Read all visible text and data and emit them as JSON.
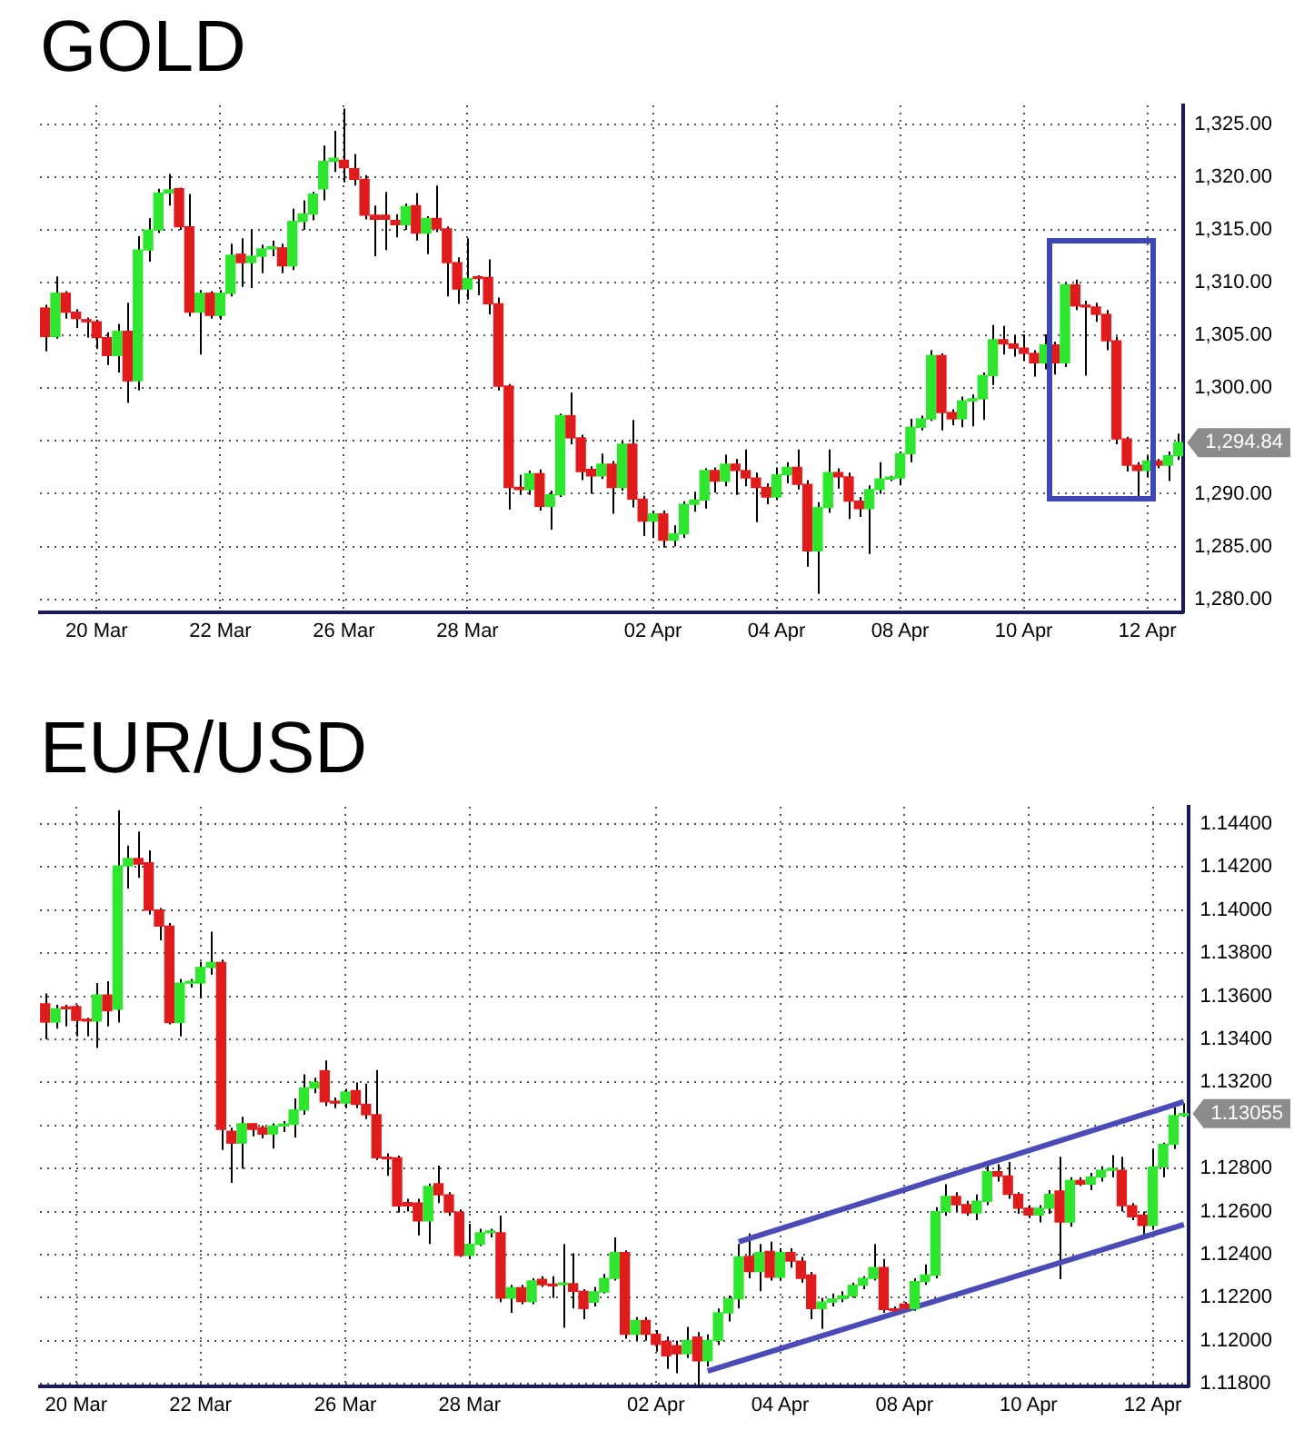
{
  "chart_data": [
    {
      "type": "candlestick",
      "title": "GOLD",
      "categories": [
        null,
        null,
        null,
        null,
        null,
        "20 Mar",
        null,
        null,
        null,
        null,
        null,
        null,
        null,
        null,
        null,
        null,
        null,
        "22 Mar",
        null,
        null,
        null,
        null,
        null,
        null,
        null,
        null,
        null,
        null,
        null,
        "26 Mar",
        null,
        null,
        null,
        null,
        null,
        null,
        null,
        null,
        null,
        null,
        null,
        "28 Mar",
        null,
        null,
        null,
        null,
        null,
        null,
        null,
        null,
        null,
        null,
        null,
        null,
        null,
        null,
        null,
        null,
        null,
        "02 Apr",
        null,
        null,
        null,
        null,
        null,
        null,
        null,
        null,
        null,
        null,
        null,
        "04 Apr",
        null,
        null,
        null,
        null,
        null,
        null,
        null,
        null,
        null,
        null,
        null,
        "08 Apr",
        null,
        null,
        null,
        null,
        null,
        null,
        null,
        null,
        null,
        null,
        null,
        "10 Apr",
        null,
        null,
        null,
        null,
        null,
        null,
        null,
        null,
        null,
        null,
        null,
        "12 Apr",
        null,
        null,
        null
      ],
      "ohlc": [
        [
          1307.6,
          1307.9,
          1303.5,
          1304.9
        ],
        [
          1304.9,
          1310.6,
          1304.7,
          1309.0
        ],
        [
          1309.0,
          1309.2,
          1306.6,
          1307.2
        ],
        [
          1307.2,
          1307.5,
          1305.7,
          1306.6
        ],
        [
          1306.5,
          1306.7,
          1304.8,
          1306.3
        ],
        [
          1306.3,
          1306.5,
          1303.7,
          1304.8
        ],
        [
          1304.8,
          1305.3,
          1302.2,
          1303.1
        ],
        [
          1303.1,
          1306.1,
          1301.5,
          1305.4
        ],
        [
          1305.4,
          1308.1,
          1298.6,
          1300.7
        ],
        [
          1300.7,
          1314.4,
          1299.8,
          1313.1
        ],
        [
          1313.1,
          1316.1,
          1312.0,
          1315.0
        ],
        [
          1315.0,
          1318.9,
          1314.7,
          1318.5
        ],
        [
          1318.5,
          1320.3,
          1317.3,
          1318.8
        ],
        [
          1318.9,
          1319.0,
          1315.0,
          1315.3
        ],
        [
          1315.3,
          1318.4,
          1306.8,
          1307.2
        ],
        [
          1307.2,
          1309.3,
          1303.2,
          1309.0
        ],
        [
          1309.0,
          1309.2,
          1306.6,
          1306.9
        ],
        [
          1306.9,
          1309.3,
          1306.5,
          1309.0
        ],
        [
          1309.0,
          1313.7,
          1308.7,
          1312.6
        ],
        [
          1312.7,
          1314.2,
          1309.6,
          1311.9
        ],
        [
          1311.9,
          1315.1,
          1309.5,
          1312.5
        ],
        [
          1312.5,
          1313.6,
          1310.9,
          1313.2
        ],
        [
          1313.2,
          1314.0,
          1312.5,
          1313.4
        ],
        [
          1313.3,
          1313.7,
          1310.9,
          1311.6
        ],
        [
          1311.6,
          1317.0,
          1311.2,
          1315.8
        ],
        [
          1315.8,
          1317.8,
          1315.0,
          1316.5
        ],
        [
          1316.5,
          1318.6,
          1315.9,
          1318.4
        ],
        [
          1318.9,
          1323.0,
          1317.8,
          1321.5
        ],
        [
          1321.5,
          1324.4,
          1320.5,
          1321.8
        ],
        [
          1321.6,
          1326.5,
          1319.5,
          1320.9
        ],
        [
          1320.8,
          1322.2,
          1319.2,
          1319.8
        ],
        [
          1319.8,
          1320.2,
          1316.0,
          1316.4
        ],
        [
          1316.4,
          1317.3,
          1312.5,
          1316.0
        ],
        [
          1316.4,
          1318.6,
          1313.1,
          1316.0
        ],
        [
          1315.9,
          1316.5,
          1314.3,
          1315.5
        ],
        [
          1315.5,
          1317.5,
          1315.0,
          1317.2
        ],
        [
          1317.3,
          1318.5,
          1314.0,
          1314.7
        ],
        [
          1314.7,
          1316.3,
          1312.7,
          1316.1
        ],
        [
          1316.1,
          1319.2,
          1314.8,
          1315.1
        ],
        [
          1315.1,
          1315.3,
          1308.7,
          1311.9
        ],
        [
          1311.9,
          1312.4,
          1308.0,
          1309.4
        ],
        [
          1309.4,
          1314.2,
          1308.4,
          1310.4
        ],
        [
          1310.5,
          1310.7,
          1308.8,
          1310.4
        ],
        [
          1310.5,
          1312.2,
          1307.0,
          1308.0
        ],
        [
          1308.0,
          1308.6,
          1299.8,
          1300.2
        ],
        [
          1300.2,
          1300.4,
          1288.5,
          1290.6
        ],
        [
          1290.6,
          1291.8,
          1289.9,
          1290.4
        ],
        [
          1290.4,
          1292.2,
          1289.9,
          1291.9
        ],
        [
          1291.9,
          1292.3,
          1288.4,
          1288.8
        ],
        [
          1288.8,
          1290.3,
          1286.6,
          1289.9
        ],
        [
          1289.9,
          1297.6,
          1289.7,
          1297.4
        ],
        [
          1297.4,
          1299.6,
          1294.7,
          1295.3
        ],
        [
          1295.3,
          1295.6,
          1291.3,
          1292.1
        ],
        [
          1292.3,
          1292.6,
          1290.0,
          1291.7
        ],
        [
          1291.7,
          1293.8,
          1291.4,
          1292.8
        ],
        [
          1292.8,
          1293.1,
          1288.1,
          1290.6
        ],
        [
          1290.6,
          1295.0,
          1290.3,
          1294.7
        ],
        [
          1294.7,
          1297.0,
          1288.7,
          1289.5
        ],
        [
          1289.5,
          1289.8,
          1286.0,
          1287.4
        ],
        [
          1287.4,
          1288.4,
          1285.8,
          1288.1
        ],
        [
          1288.1,
          1288.4,
          1284.9,
          1285.6
        ],
        [
          1285.6,
          1287.0,
          1285.0,
          1286.2
        ],
        [
          1286.2,
          1289.3,
          1285.8,
          1289.0
        ],
        [
          1289.0,
          1290.2,
          1288.3,
          1289.4
        ],
        [
          1289.4,
          1292.4,
          1288.6,
          1292.2
        ],
        [
          1292.2,
          1292.5,
          1290.1,
          1291.2
        ],
        [
          1291.2,
          1293.7,
          1290.7,
          1292.8
        ],
        [
          1292.8,
          1293.3,
          1289.9,
          1292.2
        ],
        [
          1292.2,
          1294.2,
          1290.7,
          1291.5
        ],
        [
          1291.5,
          1292.0,
          1287.3,
          1290.6
        ],
        [
          1290.6,
          1291.0,
          1289.0,
          1289.7
        ],
        [
          1289.7,
          1292.5,
          1289.4,
          1291.8
        ],
        [
          1291.8,
          1293.0,
          1291.0,
          1292.5
        ],
        [
          1292.5,
          1294.2,
          1290.4,
          1290.9
        ],
        [
          1290.9,
          1291.3,
          1283.1,
          1284.6
        ],
        [
          1284.6,
          1289.2,
          1280.5,
          1288.7
        ],
        [
          1288.7,
          1294.2,
          1288.2,
          1292.0
        ],
        [
          1292.0,
          1292.4,
          1290.5,
          1291.6
        ],
        [
          1291.6,
          1292.0,
          1287.6,
          1289.3
        ],
        [
          1289.3,
          1289.7,
          1287.8,
          1288.6
        ],
        [
          1288.6,
          1290.8,
          1284.3,
          1290.4
        ],
        [
          1290.4,
          1293.0,
          1290.0,
          1291.4
        ],
        [
          1291.4,
          1291.7,
          1291.2,
          1291.5
        ],
        [
          1291.5,
          1294.0,
          1290.8,
          1293.8
        ],
        [
          1293.8,
          1297.1,
          1293.0,
          1296.3
        ],
        [
          1296.3,
          1297.4,
          1296.0,
          1297.1
        ],
        [
          1297.1,
          1303.6,
          1296.9,
          1303.1
        ],
        [
          1303.1,
          1303.3,
          1296.0,
          1297.7
        ],
        [
          1297.7,
          1298.0,
          1296.5,
          1297.1
        ],
        [
          1297.1,
          1299.2,
          1296.3,
          1298.8
        ],
        [
          1298.8,
          1299.4,
          1296.4,
          1299.0
        ],
        [
          1299.0,
          1301.5,
          1297.0,
          1301.2
        ],
        [
          1301.2,
          1306.0,
          1300.3,
          1304.6
        ],
        [
          1304.6,
          1305.9,
          1303.2,
          1304.2
        ],
        [
          1304.2,
          1305.0,
          1303.0,
          1303.8
        ],
        [
          1303.8,
          1305.1,
          1302.6,
          1303.3
        ],
        [
          1303.3,
          1303.6,
          1301.1,
          1302.4
        ],
        [
          1302.4,
          1305.1,
          1301.8,
          1304.1
        ],
        [
          1304.1,
          1304.4,
          1301.3,
          1302.4
        ],
        [
          1302.4,
          1310.0,
          1302.0,
          1309.8
        ],
        [
          1309.8,
          1310.3,
          1307.4,
          1307.8
        ],
        [
          1307.8,
          1308.3,
          1301.2,
          1307.7
        ],
        [
          1307.7,
          1308.1,
          1306.3,
          1307.0
        ],
        [
          1307.0,
          1307.4,
          1303.6,
          1304.5
        ],
        [
          1304.5,
          1304.9,
          1294.7,
          1295.2
        ],
        [
          1295.2,
          1295.4,
          1292.1,
          1292.7
        ],
        [
          1292.7,
          1293.0,
          1289.7,
          1292.2
        ],
        [
          1292.2,
          1293.6,
          1291.6,
          1293.1
        ],
        [
          1293.1,
          1293.3,
          1292.4,
          1292.7
        ],
        [
          1292.7,
          1294.0,
          1291.2,
          1293.6
        ],
        [
          1293.6,
          1295.7,
          1293.2,
          1294.84
        ]
      ],
      "colors": [
        "#e01b1b",
        "#2ee62e",
        "#e01b1b",
        "#e01b1b",
        "#e01b1b",
        "#e01b1b",
        "#e01b1b",
        "#2ee62e",
        "#e01b1b",
        "#2ee62e",
        "#2ee62e",
        "#2ee62e",
        "#2ee62e",
        "#e01b1b",
        "#e01b1b",
        "#2ee62e",
        "#e01b1b",
        "#2ee62e",
        "#2ee62e",
        "#e01b1b",
        "#2ee62e",
        "#2ee62e",
        "#2ee62e",
        "#e01b1b",
        "#2ee62e",
        "#2ee62e",
        "#2ee62e",
        "#2ee62e",
        "#2ee62e",
        "#e01b1b",
        "#e01b1b",
        "#e01b1b",
        "#e01b1b",
        "#e01b1b",
        "#e01b1b",
        "#2ee62e",
        "#e01b1b",
        "#2ee62e",
        "#e01b1b",
        "#e01b1b",
        "#e01b1b",
        "#2ee62e",
        "#e01b1b",
        "#e01b1b",
        "#e01b1b",
        "#e01b1b",
        "#e01b1b",
        "#2ee62e",
        "#e01b1b",
        "#2ee62e",
        "#2ee62e",
        "#e01b1b",
        "#e01b1b",
        "#e01b1b",
        "#2ee62e",
        "#e01b1b",
        "#2ee62e",
        "#e01b1b",
        "#e01b1b",
        "#2ee62e",
        "#e01b1b",
        "#2ee62e",
        "#2ee62e",
        "#2ee62e",
        "#2ee62e",
        "#e01b1b",
        "#2ee62e",
        "#e01b1b",
        "#e01b1b",
        "#e01b1b",
        "#e01b1b",
        "#2ee62e",
        "#2ee62e",
        "#e01b1b",
        "#e01b1b",
        "#2ee62e",
        "#2ee62e",
        "#e01b1b",
        "#e01b1b",
        "#e01b1b",
        "#2ee62e",
        "#2ee62e",
        "#2ee62e",
        "#2ee62e",
        "#2ee62e",
        "#2ee62e",
        "#2ee62e",
        "#e01b1b",
        "#e01b1b",
        "#2ee62e",
        "#2ee62e",
        "#2ee62e",
        "#2ee62e",
        "#e01b1b",
        "#e01b1b",
        "#e01b1b",
        "#e01b1b",
        "#2ee62e",
        "#e01b1b",
        "#2ee62e",
        "#e01b1b",
        "#e01b1b",
        "#e01b1b",
        "#e01b1b",
        "#e01b1b",
        "#e01b1b",
        "#e01b1b",
        "#2ee62e",
        "#e01b1b",
        "#2ee62e",
        "#2ee62e"
      ],
      "ylim": [
        1278.8,
        1326.8
      ],
      "yticks": [
        {
          "value": 1280,
          "label": "1,280.00"
        },
        {
          "value": 1285,
          "label": "1,285.00"
        },
        {
          "value": 1290,
          "label": "1,290.00"
        },
        {
          "value": 1295,
          "label": null
        },
        {
          "value": 1300,
          "label": "1,300.00"
        },
        {
          "value": 1305,
          "label": "1,305.00"
        },
        {
          "value": 1310,
          "label": "1,310.00"
        },
        {
          "value": 1315,
          "label": "1,315.00"
        },
        {
          "value": 1320,
          "label": "1,320.00"
        },
        {
          "value": 1325,
          "label": "1,325.00"
        }
      ],
      "grid": true,
      "annotations": [
        "1,294.84"
      ]
    },
    {
      "type": "candlestick",
      "title": "EUR/USD",
      "categories": [
        null,
        null,
        null,
        "20 Mar",
        null,
        null,
        null,
        null,
        null,
        null,
        null,
        null,
        null,
        null,
        null,
        "22 Mar",
        null,
        null,
        null,
        null,
        null,
        null,
        null,
        null,
        null,
        null,
        null,
        null,
        null,
        "26 Mar",
        null,
        null,
        null,
        null,
        null,
        null,
        null,
        null,
        null,
        null,
        null,
        "28 Mar",
        null,
        null,
        null,
        null,
        null,
        null,
        null,
        null,
        null,
        null,
        null,
        null,
        null,
        null,
        null,
        null,
        null,
        "02 Apr",
        null,
        null,
        null,
        null,
        null,
        null,
        null,
        null,
        null,
        null,
        null,
        "04 Apr",
        null,
        null,
        null,
        null,
        null,
        null,
        null,
        null,
        null,
        null,
        null,
        "08 Apr",
        null,
        null,
        null,
        null,
        null,
        null,
        null,
        null,
        null,
        null,
        null,
        "10 Apr",
        null,
        null,
        null,
        null,
        null,
        null,
        null,
        null,
        null,
        null,
        null,
        "12 Apr",
        null,
        null,
        null
      ],
      "ohlc": [
        [
          1.13565,
          1.13613,
          1.134,
          1.1348
        ],
        [
          1.1348,
          1.1356,
          1.1345,
          1.13542
        ],
        [
          1.1355,
          1.1356,
          1.1346,
          1.13542
        ],
        [
          1.13552,
          1.1356,
          1.13414,
          1.13488
        ],
        [
          1.13488,
          1.135,
          1.13414,
          1.13485
        ],
        [
          1.13485,
          1.13661,
          1.1336,
          1.13606
        ],
        [
          1.13606,
          1.1367,
          1.1346,
          1.13533
        ],
        [
          1.1354,
          1.14464,
          1.13478,
          1.14205
        ],
        [
          1.14205,
          1.143,
          1.141,
          1.1424
        ],
        [
          1.1424,
          1.14365,
          1.1415,
          1.14214
        ],
        [
          1.1422,
          1.14278,
          1.1398,
          1.14
        ],
        [
          1.14,
          1.1401,
          1.1386,
          1.13926
        ],
        [
          1.13926,
          1.1394,
          1.1347,
          1.13478
        ],
        [
          1.13478,
          1.1368,
          1.13414,
          1.13661
        ],
        [
          1.13661,
          1.1368,
          1.1364,
          1.13665
        ],
        [
          1.13661,
          1.1376,
          1.1359,
          1.13734
        ],
        [
          1.13734,
          1.139,
          1.137,
          1.13757
        ],
        [
          1.13757,
          1.1377,
          1.12886,
          1.12982
        ],
        [
          1.12973,
          1.1299,
          1.12733,
          1.12918
        ],
        [
          1.12918,
          1.1304,
          1.128,
          1.13008
        ],
        [
          1.13008,
          1.1301,
          1.1295,
          1.12982
        ],
        [
          1.1299,
          1.13,
          1.1294,
          1.1296
        ],
        [
          1.1296,
          1.1301,
          1.12893,
          1.12998
        ],
        [
          1.12998,
          1.1302,
          1.1297,
          1.13005
        ],
        [
          1.13005,
          1.13126,
          1.12944,
          1.13072
        ],
        [
          1.13072,
          1.13238,
          1.1305,
          1.13174
        ],
        [
          1.13174,
          1.13222,
          1.1315,
          1.132
        ],
        [
          1.13254,
          1.13302,
          1.1309,
          1.1311
        ],
        [
          1.1311,
          1.1313,
          1.1308,
          1.13104
        ],
        [
          1.13104,
          1.1317,
          1.1308,
          1.13155
        ],
        [
          1.13162,
          1.132,
          1.1308,
          1.13098
        ],
        [
          1.13098,
          1.13194,
          1.1303,
          1.1305
        ],
        [
          1.1305,
          1.13258,
          1.1284,
          1.1285
        ],
        [
          1.1285,
          1.1287,
          1.12766,
          1.12845
        ],
        [
          1.1285,
          1.1286,
          1.12595,
          1.12626
        ],
        [
          1.12642,
          1.1266,
          1.126,
          1.12626
        ],
        [
          1.1264,
          1.1266,
          1.1249,
          1.12557
        ],
        [
          1.12557,
          1.1273,
          1.1245,
          1.12717
        ],
        [
          1.1273,
          1.12813,
          1.1264,
          1.12678
        ],
        [
          1.12678,
          1.1269,
          1.1258,
          1.12598
        ],
        [
          1.12598,
          1.1261,
          1.1239,
          1.12397
        ],
        [
          1.12397,
          1.12544,
          1.1238,
          1.12448
        ],
        [
          1.12448,
          1.1252,
          1.1244,
          1.12502
        ],
        [
          1.12502,
          1.1252,
          1.1248,
          1.12505
        ],
        [
          1.12502,
          1.12582,
          1.1218,
          1.12198
        ],
        [
          1.12198,
          1.1226,
          1.1213,
          1.12246
        ],
        [
          1.12246,
          1.1226,
          1.1217,
          1.12182
        ],
        [
          1.12182,
          1.1229,
          1.1217,
          1.12278
        ],
        [
          1.12285,
          1.123,
          1.1225,
          1.1226
        ],
        [
          1.1226,
          1.123,
          1.122,
          1.12255
        ],
        [
          1.1226,
          1.1245,
          1.1206,
          1.12265
        ],
        [
          1.12265,
          1.12406,
          1.1215,
          1.1223
        ],
        [
          1.1223,
          1.1224,
          1.121,
          1.1215
        ],
        [
          1.12179,
          1.1225,
          1.1216,
          1.12227
        ],
        [
          1.12227,
          1.1231,
          1.1222,
          1.1229
        ],
        [
          1.1229,
          1.1248,
          1.1228,
          1.1241
        ],
        [
          1.1241,
          1.1242,
          1.1201,
          1.1203
        ],
        [
          1.1203,
          1.1211,
          1.12,
          1.12095
        ],
        [
          1.12095,
          1.1211,
          1.12,
          1.1203
        ],
        [
          1.1203,
          1.1205,
          1.1195,
          1.11983
        ],
        [
          1.11998,
          1.1202,
          1.1187,
          1.1193
        ],
        [
          1.11978,
          1.12,
          1.1185,
          1.1194
        ],
        [
          1.1194,
          1.12065,
          1.1192,
          1.12002
        ],
        [
          1.12018,
          1.1204,
          1.11786,
          1.11907
        ],
        [
          1.11907,
          1.1203,
          1.1188,
          1.12002
        ],
        [
          1.12002,
          1.1215,
          1.1198,
          1.1213
        ],
        [
          1.1213,
          1.1221,
          1.1209,
          1.12195
        ],
        [
          1.12195,
          1.1245,
          1.1215,
          1.1239
        ],
        [
          1.12392,
          1.12498,
          1.1229,
          1.12322
        ],
        [
          1.12322,
          1.1245,
          1.1223,
          1.1241
        ],
        [
          1.12415,
          1.1246,
          1.1228,
          1.12295
        ],
        [
          1.12295,
          1.1243,
          1.1228,
          1.1241
        ],
        [
          1.1241,
          1.1243,
          1.1234,
          1.1237
        ],
        [
          1.1237,
          1.1239,
          1.1227,
          1.1229
        ],
        [
          1.12305,
          1.1232,
          1.121,
          1.1215
        ],
        [
          1.1215,
          1.122,
          1.12055,
          1.1218
        ],
        [
          1.1218,
          1.1222,
          1.1216,
          1.12195
        ],
        [
          1.12195,
          1.1223,
          1.1218,
          1.12208
        ],
        [
          1.12208,
          1.1227,
          1.122,
          1.12258
        ],
        [
          1.12258,
          1.123,
          1.1224,
          1.1229
        ],
        [
          1.1229,
          1.1245,
          1.1228,
          1.1234
        ],
        [
          1.1234,
          1.1238,
          1.1213,
          1.12145
        ],
        [
          1.12145,
          1.1216,
          1.1213,
          1.1214
        ],
        [
          1.1217,
          1.1218,
          1.1214,
          1.1215
        ],
        [
          1.1215,
          1.1229,
          1.1214,
          1.12275
        ],
        [
          1.12275,
          1.12355,
          1.1226,
          1.12305
        ],
        [
          1.12305,
          1.1262,
          1.1229,
          1.126
        ],
        [
          1.126,
          1.12727,
          1.1258,
          1.1267
        ],
        [
          1.1267,
          1.1269,
          1.126,
          1.12632
        ],
        [
          1.12632,
          1.1265,
          1.1258,
          1.12594
        ],
        [
          1.12594,
          1.1268,
          1.1256,
          1.12648
        ],
        [
          1.12648,
          1.1282,
          1.1263,
          1.12785
        ],
        [
          1.12785,
          1.1282,
          1.1274,
          1.12765
        ],
        [
          1.12765,
          1.1283,
          1.1266,
          1.1268
        ],
        [
          1.1268,
          1.1269,
          1.1259,
          1.12616
        ],
        [
          1.12616,
          1.1263,
          1.1257,
          1.12584
        ],
        [
          1.12584,
          1.1263,
          1.1255,
          1.12616
        ],
        [
          1.12616,
          1.127,
          1.1259,
          1.1268
        ],
        [
          1.12696,
          1.12855,
          1.12286,
          1.12552
        ],
        [
          1.12552,
          1.1276,
          1.1253,
          1.12744
        ],
        [
          1.12744,
          1.1276,
          1.1272,
          1.12728
        ],
        [
          1.12728,
          1.1278,
          1.127,
          1.1276
        ],
        [
          1.1276,
          1.1281,
          1.1274,
          1.12792
        ],
        [
          1.12792,
          1.12862,
          1.1276,
          1.12795
        ],
        [
          1.12792,
          1.12855,
          1.126,
          1.12627
        ],
        [
          1.12627,
          1.1264,
          1.1256,
          1.12576
        ],
        [
          1.12584,
          1.126,
          1.12487,
          1.12536
        ],
        [
          1.12536,
          1.12888,
          1.1252,
          1.12808
        ],
        [
          1.12808,
          1.1292,
          1.1276,
          1.12912
        ],
        [
          1.12912,
          1.13104,
          1.1289,
          1.13046
        ],
        [
          1.13046,
          1.13104,
          1.1304,
          1.13055
        ]
      ],
      "colors": [
        "#e01b1b",
        "#2ee62e",
        "#e01b1b",
        "#e01b1b",
        "#e01b1b",
        "#2ee62e",
        "#e01b1b",
        "#2ee62e",
        "#2ee62e",
        "#e01b1b",
        "#e01b1b",
        "#e01b1b",
        "#e01b1b",
        "#2ee62e",
        "#2ee62e",
        "#2ee62e",
        "#2ee62e",
        "#e01b1b",
        "#e01b1b",
        "#2ee62e",
        "#e01b1b",
        "#e01b1b",
        "#2ee62e",
        "#2ee62e",
        "#2ee62e",
        "#2ee62e",
        "#2ee62e",
        "#e01b1b",
        "#e01b1b",
        "#2ee62e",
        "#e01b1b",
        "#e01b1b",
        "#e01b1b",
        "#e01b1b",
        "#e01b1b",
        "#e01b1b",
        "#e01b1b",
        "#2ee62e",
        "#e01b1b",
        "#e01b1b",
        "#e01b1b",
        "#2ee62e",
        "#2ee62e",
        "#2ee62e",
        "#e01b1b",
        "#2ee62e",
        "#e01b1b",
        "#2ee62e",
        "#e01b1b",
        "#e01b1b",
        "#2ee62e",
        "#e01b1b",
        "#e01b1b",
        "#2ee62e",
        "#2ee62e",
        "#2ee62e",
        "#e01b1b",
        "#2ee62e",
        "#e01b1b",
        "#e01b1b",
        "#e01b1b",
        "#e01b1b",
        "#2ee62e",
        "#e01b1b",
        "#2ee62e",
        "#2ee62e",
        "#2ee62e",
        "#2ee62e",
        "#e01b1b",
        "#2ee62e",
        "#e01b1b",
        "#2ee62e",
        "#e01b1b",
        "#e01b1b",
        "#e01b1b",
        "#2ee62e",
        "#2ee62e",
        "#2ee62e",
        "#2ee62e",
        "#2ee62e",
        "#2ee62e",
        "#e01b1b",
        "#e01b1b",
        "#e01b1b",
        "#2ee62e",
        "#2ee62e",
        "#2ee62e",
        "#2ee62e",
        "#e01b1b",
        "#e01b1b",
        "#2ee62e",
        "#2ee62e",
        "#e01b1b",
        "#e01b1b",
        "#e01b1b",
        "#e01b1b",
        "#2ee62e",
        "#2ee62e",
        "#e01b1b",
        "#2ee62e",
        "#e01b1b",
        "#2ee62e",
        "#2ee62e",
        "#2ee62e",
        "#e01b1b",
        "#e01b1b",
        "#e01b1b",
        "#2ee62e",
        "#2ee62e",
        "#2ee62e",
        "#2ee62e"
      ],
      "series": [
        {
          "type": "line",
          "color": "#4b4bb8",
          "values": [
            null,
            null,
            null,
            null,
            null,
            null,
            null,
            null,
            null,
            null,
            null,
            null,
            null,
            null,
            null,
            null,
            null,
            null,
            null,
            null,
            null,
            null,
            null,
            null,
            null,
            null,
            null,
            null,
            null,
            null,
            null,
            null,
            null,
            null,
            null,
            null,
            null,
            null,
            null,
            null,
            null,
            null,
            null,
            null,
            null,
            null,
            null,
            null,
            null,
            null,
            null,
            null,
            null,
            null,
            null,
            null,
            null,
            null,
            null,
            null,
            null,
            null,
            null,
            null,
            null,
            null,
            null,
            1.1246,
            null,
            null,
            null,
            null,
            null,
            null,
            null,
            null,
            null,
            null,
            null,
            null,
            null,
            null,
            null,
            null,
            null,
            null,
            null,
            null,
            null,
            null,
            null,
            null,
            null,
            null,
            null,
            null,
            null,
            null,
            null,
            null,
            null,
            null,
            null,
            null,
            null,
            null,
            null,
            null,
            null,
            null,
            1.1311
          ]
        },
        {
          "type": "line",
          "color": "#4b4bb8",
          "values": [
            null,
            null,
            null,
            null,
            null,
            null,
            null,
            null,
            null,
            null,
            null,
            null,
            null,
            null,
            null,
            null,
            null,
            null,
            null,
            null,
            null,
            null,
            null,
            null,
            null,
            null,
            null,
            null,
            null,
            null,
            null,
            null,
            null,
            null,
            null,
            null,
            null,
            null,
            null,
            null,
            null,
            null,
            null,
            null,
            null,
            null,
            null,
            null,
            null,
            null,
            null,
            null,
            null,
            null,
            null,
            null,
            null,
            null,
            null,
            null,
            null,
            null,
            null,
            null,
            1.1186,
            null,
            null,
            null,
            null,
            null,
            null,
            null,
            null,
            null,
            null,
            null,
            null,
            null,
            null,
            null,
            null,
            null,
            null,
            null,
            null,
            null,
            null,
            null,
            null,
            null,
            null,
            null,
            null,
            null,
            null,
            null,
            null,
            null,
            null,
            null,
            null,
            null,
            null,
            null,
            null,
            null,
            null,
            null,
            null,
            null,
            1.1254
          ]
        }
      ],
      "ylim": [
        1.1179,
        1.1448
      ],
      "yticks": [
        {
          "value": 1.118,
          "label": "1.11800"
        },
        {
          "value": 1.12,
          "label": "1.12000"
        },
        {
          "value": 1.122,
          "label": "1.12200"
        },
        {
          "value": 1.124,
          "label": "1.12400"
        },
        {
          "value": 1.126,
          "label": "1.12600"
        },
        {
          "value": 1.128,
          "label": "1.12800"
        },
        {
          "value": 1.13,
          "label": null
        },
        {
          "value": 1.132,
          "label": "1.13200"
        },
        {
          "value": 1.134,
          "label": "1.13400"
        },
        {
          "value": 1.136,
          "label": "1.13600"
        },
        {
          "value": 1.138,
          "label": "1.13800"
        },
        {
          "value": 1.14,
          "label": "1.14000"
        },
        {
          "value": 1.142,
          "label": "1.14200"
        },
        {
          "value": 1.144,
          "label": "1.14400"
        }
      ],
      "grid": true,
      "annotations": [
        "1.13055"
      ]
    }
  ]
}
